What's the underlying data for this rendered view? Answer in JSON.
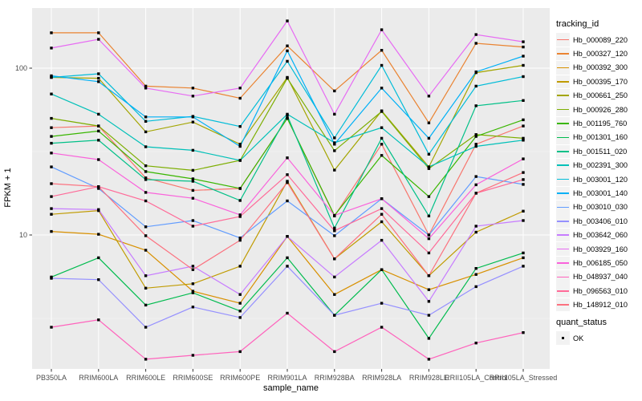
{
  "figure": {
    "kind": "ggplot-style profile line chart",
    "background": "#FFFFFF",
    "panel_background": "#EBEBEB",
    "gridline_color": "#FFFFFF",
    "point_color": "#000000",
    "tick_label_color": "#4D4D4D"
  },
  "x_axis": {
    "title": "sample_name",
    "categories": [
      "PB350LA",
      "RRIM600LA",
      "RRIM600LE",
      "RRIM600SE",
      "RRIM600PE",
      "RRIM901LA",
      "RRIM928BA",
      "RRIM928LA",
      "RRIM928LE",
      "RRII105LA_Control",
      "RRII105LA_Stressed"
    ]
  },
  "y_axis": {
    "title": "FPKM + 1",
    "scale": "log10",
    "ticks": [
      {
        "label": "100",
        "value": 100
      },
      {
        "label": "10",
        "value": 10
      }
    ],
    "minor_grid_values": [
      31.62,
      3.162
    ]
  },
  "legend": {
    "tracking_title": "tracking_id",
    "quant_title": "quant_status",
    "quant_ok_label": "OK"
  },
  "chart_data": {
    "type": "line",
    "title": "",
    "xlabel": "sample_name",
    "ylabel": "FPKM + 1",
    "yscale": "log10",
    "ylim": [
      1.7,
      210
    ],
    "grid": true,
    "legend_position": "right",
    "marker": "black-square",
    "categories": [
      "PB350LA",
      "RRIM600LA",
      "RRIM600LE",
      "RRIM600SE",
      "RRIM600PE",
      "RRIM901LA",
      "RRIM928BA",
      "RRIM928LA",
      "RRIM928LE",
      "RRII105LA_Control",
      "RRII105LA_Stressed"
    ],
    "series": [
      {
        "name": "Hb_000089_220",
        "color": "#F8766D",
        "values": [
          44,
          45,
          22,
          18.5,
          19,
          50,
          13,
          35,
          10,
          35,
          45
        ]
      },
      {
        "name": "Hb_000327_120",
        "color": "#EA8331",
        "values": [
          163,
          163,
          78,
          76,
          66,
          136,
          73,
          128,
          47,
          141,
          134
        ]
      },
      {
        "name": "Hb_000392_300",
        "color": "#D89000",
        "values": [
          10.5,
          10.1,
          8.1,
          4.6,
          3.9,
          9.8,
          4.4,
          6.2,
          4.7,
          5.8,
          7.3
        ]
      },
      {
        "name": "Hb_000395_170",
        "color": "#C09B00",
        "values": [
          13.3,
          14,
          4.8,
          5.1,
          6.5,
          21,
          7.2,
          12,
          5.7,
          10.4,
          13.9
        ]
      },
      {
        "name": "Hb_000661_250",
        "color": "#A3A500",
        "values": [
          88,
          87,
          41.5,
          47.5,
          35,
          88,
          24.5,
          55.5,
          25.6,
          94,
          104
        ]
      },
      {
        "name": "Hb_000926_280",
        "color": "#7CAE00",
        "values": [
          50,
          45,
          26,
          24.4,
          28,
          87,
          32,
          55,
          25,
          40,
          38
        ]
      },
      {
        "name": "Hb_001195_760",
        "color": "#39B600",
        "values": [
          39,
          42,
          24,
          21.7,
          19,
          50,
          13.1,
          30,
          17,
          39,
          49
        ]
      },
      {
        "name": "Hb_001301_160",
        "color": "#00BB4E",
        "values": [
          5.6,
          7.3,
          3.8,
          4.5,
          3.5,
          7.3,
          3.3,
          6.2,
          2.4,
          6.3,
          7.8
        ]
      },
      {
        "name": "Hb_001511_020",
        "color": "#00C087",
        "values": [
          35.5,
          37,
          21.5,
          21,
          16.1,
          52,
          11,
          38,
          13,
          59.5,
          64
        ]
      },
      {
        "name": "Hb_002391_300",
        "color": "#00C0B8",
        "values": [
          70,
          53,
          33.8,
          32.2,
          28,
          53,
          35.7,
          44,
          25.6,
          34,
          37
        ]
      },
      {
        "name": "Hb_003001_120",
        "color": "#00BCD8",
        "values": [
          88,
          92.5,
          48,
          51.4,
          44.7,
          110,
          38.2,
          104,
          30.5,
          78,
          89
        ]
      },
      {
        "name": "Hb_003001_140",
        "color": "#00B0F6",
        "values": [
          90,
          83,
          51,
          51,
          34,
          127,
          35,
          76,
          38,
          95,
          118
        ]
      },
      {
        "name": "Hb_003010_030",
        "color": "#619CFF",
        "values": [
          25.6,
          19,
          11.2,
          12.2,
          9.6,
          16,
          9.9,
          16.5,
          10,
          22.4,
          20.1
        ]
      },
      {
        "name": "Hb_003406_010",
        "color": "#9590FF",
        "values": [
          5.5,
          5.4,
          2.8,
          3.7,
          3.2,
          6.5,
          3.3,
          3.9,
          3.3,
          4.9,
          6.5
        ]
      },
      {
        "name": "Hb_003642_060",
        "color": "#C77CFF",
        "values": [
          14.4,
          14.2,
          5.7,
          6.5,
          4.4,
          9.8,
          5.6,
          9.3,
          4,
          11.3,
          12.2
        ]
      },
      {
        "name": "Hb_003929_160",
        "color": "#E76BF3",
        "values": [
          132,
          149,
          76,
          68,
          76,
          192,
          53,
          170,
          68,
          159,
          144
        ]
      },
      {
        "name": "Hb_006185_050",
        "color": "#FA62DB",
        "values": [
          31,
          28.3,
          18,
          16.6,
          13.2,
          29,
          13.1,
          16.5,
          9.5,
          20,
          28.6
        ]
      },
      {
        "name": "Hb_048937_040",
        "color": "#FF62BC",
        "values": [
          2.8,
          3.1,
          1.8,
          1.9,
          2,
          3.4,
          2,
          2.8,
          1.8,
          2.25,
          2.6
        ]
      },
      {
        "name": "Hb_096563_010",
        "color": "#FF6A98",
        "values": [
          17,
          19.5,
          16,
          11.3,
          12.9,
          23,
          10.6,
          14.4,
          7.8,
          17.8,
          21.5
        ]
      },
      {
        "name": "Hb_148912_010",
        "color": "#FC717F",
        "values": [
          20.3,
          19.5,
          9.9,
          6.2,
          9.3,
          20.6,
          7.2,
          13.3,
          5.7,
          17.8,
          23.7
        ]
      }
    ]
  }
}
